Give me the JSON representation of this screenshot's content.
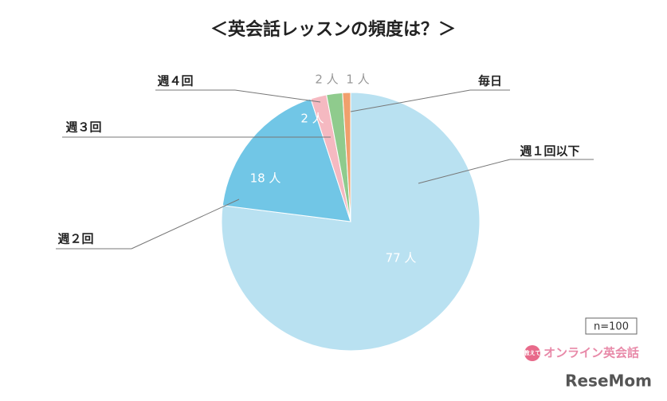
{
  "chart_data": {
    "type": "pie",
    "title": "＜英会話レッスンの頻度は？＞",
    "categories": [
      "週１回以下",
      "週２回",
      "週３回",
      "週４回",
      "毎日"
    ],
    "values": [
      77,
      18,
      2,
      2,
      1
    ],
    "value_labels": [
      "77 人",
      "18 人",
      "2 人",
      "2 人",
      "1 人"
    ],
    "colors": [
      "#b9e1f1",
      "#71c6e6",
      "#f5b9c1",
      "#8fcb8d",
      "#f0a06d"
    ],
    "start": "top",
    "direction": "clockwise",
    "note": "n=100",
    "logo_badge": "教えて",
    "logo": "オンライン英会話",
    "watermark": "ReseMom"
  }
}
